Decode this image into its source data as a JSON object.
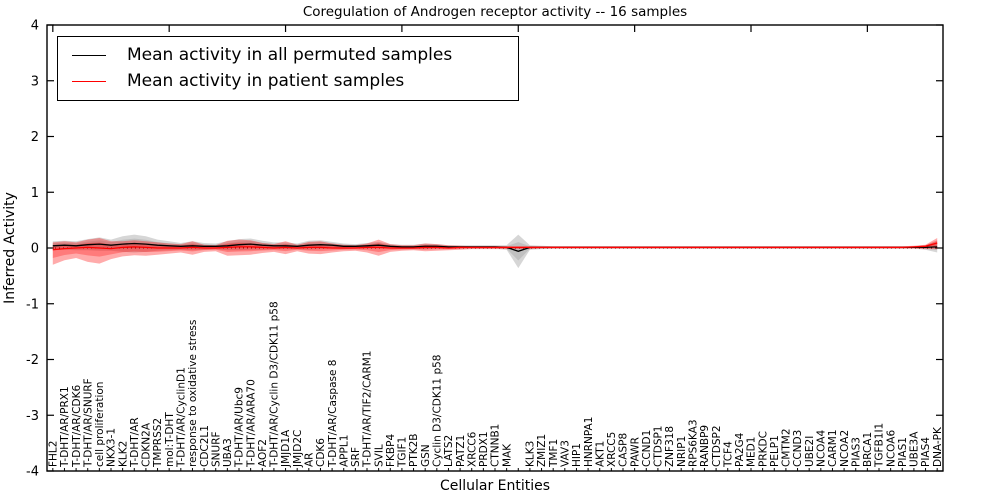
{
  "title": "Coregulation of Androgen receptor activity -- 16 samples",
  "legend": {
    "items": [
      {
        "label": "Mean activity in all permuted samples",
        "color": "#000000"
      },
      {
        "label": "Mean activity in patient samples",
        "color": "#ff0000"
      }
    ],
    "position": "upper left"
  },
  "chart_data": {
    "type": "line",
    "title": "Coregulation of Androgen receptor activity -- 16 samples",
    "xlabel": "Cellular Entities",
    "ylabel": "Inferred Activity",
    "ylim": [
      -4,
      4
    ],
    "yticks": [
      -4,
      -3,
      -2,
      -1,
      0,
      1,
      2,
      3,
      4
    ],
    "grid": false,
    "zero_line_style": "dotted",
    "categories": [
      "FHL2",
      "T-DHT/AR/PRX1",
      "T-DHT/AR/CDK6",
      "T-DHT/AR/SNURF",
      "cell proliferation",
      "NKX3-1",
      "KLK2",
      "T-DHT/AR",
      "CDKN2A",
      "TMPRSS2",
      "mol:T-DHT",
      "T-DHT/AR/CyclinD1",
      "response to oxidative stress",
      "CDC2L1",
      "SNURF",
      "UBA3",
      "T-DHT/AR/Ubc9",
      "T-DHT/AR/ARA70",
      "AOF2",
      "T-DHT/AR/Cyclin D3/CDK11 p58",
      "JMJD1A",
      "JMJD2C",
      "AR",
      "CDK6",
      "T-DHT/AR/Caspase 8",
      "APPL1",
      "SRF",
      "T-DHT/AR/TIF2/CARM1",
      "SVIL",
      "FKBP4",
      "TGIF1",
      "PTK2B",
      "GSN",
      "Cyclin D3/CDK11 p58",
      "LATS2",
      "PATZ1",
      "XRCC6",
      "PRDX1",
      "CTNNB1",
      "MAK",
      "",
      "KLK3",
      "ZMIZ1",
      "TMF1",
      "VAV3",
      "HIP1",
      "HNRNPA1",
      "AKT1",
      "XRCC5",
      "CASP8",
      "PAWR",
      "CCND1",
      "CTDSP1",
      "ZNF318",
      "NRIP1",
      "RPS6KA3",
      "RANBP9",
      "CTDSP2",
      "TCF4",
      "PA2G4",
      "MED1",
      "PRKDC",
      "PELP1",
      "CMTM2",
      "CCND3",
      "UBE2I",
      "NCOA4",
      "CARM1",
      "NCOA2",
      "PIAS3",
      "BRCA1",
      "TGFB1I1",
      "NCOA6",
      "PIAS1",
      "UBE3A",
      "PIAS4",
      "DNA-PK"
    ],
    "series": [
      {
        "name": "Mean activity in all permuted samples",
        "color": "#000000",
        "band_color": "rgba(0,0,0,0.16)",
        "mean": [
          0.04,
          0.05,
          0.04,
          0.06,
          0.07,
          0.05,
          0.07,
          0.08,
          0.07,
          0.05,
          0.04,
          0.03,
          0.04,
          0.03,
          0.03,
          0.04,
          0.06,
          0.07,
          0.05,
          0.04,
          0.04,
          0.03,
          0.05,
          0.06,
          0.05,
          0.03,
          0.03,
          0.04,
          0.05,
          0.03,
          0.02,
          0.02,
          0.03,
          0.03,
          0.02,
          0.02,
          0.02,
          0.02,
          0.02,
          0.01,
          -0.06,
          0.01,
          0.01,
          0.01,
          0.01,
          0.01,
          0.01,
          0.01,
          0.01,
          0.01,
          0.01,
          0.01,
          0.01,
          0.01,
          0.01,
          0.01,
          0.01,
          0.01,
          0.01,
          0.01,
          0.01,
          0.01,
          0.01,
          0.01,
          0.01,
          0.01,
          0.01,
          0.01,
          0.01,
          0.01,
          0.01,
          0.01,
          0.01,
          0.01,
          0.01,
          0.01,
          0.02
        ],
        "spread": [
          0.08,
          0.08,
          0.08,
          0.1,
          0.12,
          0.1,
          0.14,
          0.16,
          0.14,
          0.1,
          0.08,
          0.06,
          0.08,
          0.06,
          0.05,
          0.08,
          0.1,
          0.1,
          0.08,
          0.06,
          0.06,
          0.05,
          0.08,
          0.08,
          0.06,
          0.05,
          0.04,
          0.05,
          0.06,
          0.04,
          0.04,
          0.04,
          0.05,
          0.04,
          0.03,
          0.03,
          0.03,
          0.03,
          0.03,
          0.04,
          0.3,
          0.04,
          0.03,
          0.02,
          0.02,
          0.02,
          0.02,
          0.02,
          0.02,
          0.02,
          0.02,
          0.02,
          0.02,
          0.02,
          0.02,
          0.02,
          0.02,
          0.02,
          0.02,
          0.02,
          0.02,
          0.02,
          0.02,
          0.02,
          0.02,
          0.02,
          0.02,
          0.02,
          0.02,
          0.02,
          0.02,
          0.02,
          0.02,
          0.02,
          0.02,
          0.04,
          0.1
        ]
      },
      {
        "name": "Mean activity in patient samples",
        "color": "#ff0000",
        "band_color": "rgba(255,0,0,0.33)",
        "mean": [
          -0.03,
          -0.01,
          0.0,
          0.01,
          0.0,
          -0.01,
          0.01,
          0.02,
          0.01,
          0.0,
          0.0,
          0.0,
          0.01,
          0.0,
          0.0,
          0.01,
          0.02,
          0.02,
          0.01,
          0.0,
          0.01,
          0.0,
          0.01,
          0.01,
          0.0,
          0.0,
          0.0,
          0.01,
          0.01,
          0.0,
          0.0,
          0.0,
          0.01,
          0.01,
          0.0,
          0.01,
          0.01,
          0.01,
          0.01,
          0.01,
          0.01,
          0.01,
          0.01,
          0.01,
          0.01,
          0.01,
          0.01,
          0.01,
          0.01,
          0.01,
          0.01,
          0.01,
          0.01,
          0.01,
          0.01,
          0.01,
          0.01,
          0.01,
          0.01,
          0.01,
          0.01,
          0.01,
          0.01,
          0.01,
          0.01,
          0.01,
          0.01,
          0.01,
          0.01,
          0.01,
          0.01,
          0.01,
          0.01,
          0.01,
          0.02,
          0.03,
          0.09
        ],
        "upper": [
          0.1,
          0.12,
          0.1,
          0.15,
          0.18,
          0.12,
          0.12,
          0.14,
          0.12,
          0.1,
          0.08,
          0.07,
          0.12,
          0.06,
          0.05,
          0.13,
          0.15,
          0.14,
          0.09,
          0.07,
          0.12,
          0.06,
          0.11,
          0.12,
          0.08,
          0.06,
          0.05,
          0.08,
          0.15,
          0.07,
          0.05,
          0.05,
          0.08,
          0.07,
          0.05,
          0.04,
          0.03,
          0.03,
          0.03,
          0.03,
          0.03,
          0.03,
          0.03,
          0.03,
          0.03,
          0.03,
          0.03,
          0.03,
          0.03,
          0.03,
          0.03,
          0.03,
          0.03,
          0.03,
          0.03,
          0.03,
          0.03,
          0.03,
          0.03,
          0.03,
          0.03,
          0.03,
          0.03,
          0.03,
          0.03,
          0.03,
          0.03,
          0.03,
          0.03,
          0.03,
          0.03,
          0.03,
          0.03,
          0.03,
          0.04,
          0.06,
          0.18
        ],
        "lower": [
          -0.3,
          -0.22,
          -0.18,
          -0.25,
          -0.28,
          -0.2,
          -0.15,
          -0.13,
          -0.14,
          -0.12,
          -0.1,
          -0.08,
          -0.12,
          -0.07,
          -0.06,
          -0.14,
          -0.13,
          -0.12,
          -0.09,
          -0.07,
          -0.11,
          -0.06,
          -0.1,
          -0.11,
          -0.08,
          -0.06,
          -0.05,
          -0.08,
          -0.14,
          -0.07,
          -0.05,
          -0.04,
          -0.06,
          -0.05,
          -0.04,
          -0.03,
          -0.02,
          -0.02,
          -0.02,
          -0.02,
          -0.02,
          -0.02,
          -0.01,
          -0.01,
          -0.01,
          -0.01,
          -0.01,
          -0.01,
          -0.01,
          -0.01,
          -0.01,
          -0.01,
          -0.01,
          -0.01,
          -0.01,
          -0.01,
          -0.01,
          -0.01,
          -0.01,
          -0.01,
          -0.01,
          -0.01,
          -0.01,
          -0.01,
          -0.01,
          -0.01,
          -0.01,
          -0.01,
          -0.01,
          -0.01,
          -0.01,
          -0.01,
          -0.01,
          -0.01,
          -0.01,
          -0.02,
          -0.02
        ]
      }
    ]
  }
}
